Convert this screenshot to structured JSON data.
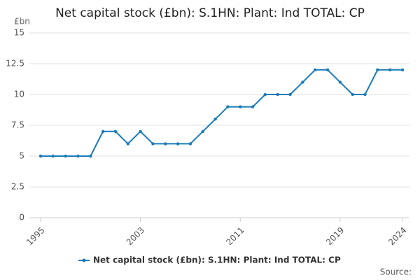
{
  "chart_data": {
    "type": "line",
    "title": "Net capital stock (£bn): S.1HN: Plant: Ind TOTAL: CP",
    "y_unit": "£bn",
    "source": "Source:",
    "x": [
      1995,
      1996,
      1997,
      1998,
      1999,
      2000,
      2001,
      2002,
      2003,
      2004,
      2005,
      2006,
      2007,
      2008,
      2009,
      2010,
      2011,
      2012,
      2013,
      2014,
      2015,
      2016,
      2017,
      2018,
      2019,
      2020,
      2021,
      2022,
      2023,
      2024
    ],
    "series": [
      {
        "name": "Net capital stock (£bn): S.1HN: Plant: Ind TOTAL: CP",
        "color": "#1a7bb9",
        "values": [
          5,
          5,
          5,
          5,
          5,
          7,
          7,
          6,
          7,
          6,
          6,
          6,
          6,
          7,
          8,
          9,
          9,
          9,
          10,
          10,
          10,
          11,
          12,
          12,
          11,
          10,
          10,
          12,
          12,
          12
        ]
      }
    ],
    "xlim": [
      1995,
      2024
    ],
    "xticks": [
      1995,
      2003,
      2011,
      2019,
      2024
    ],
    "ylim": [
      0,
      15
    ],
    "yticks": [
      0,
      2.5,
      5,
      7.5,
      10,
      12.5,
      15
    ],
    "grid": true,
    "legend": "bottom"
  }
}
